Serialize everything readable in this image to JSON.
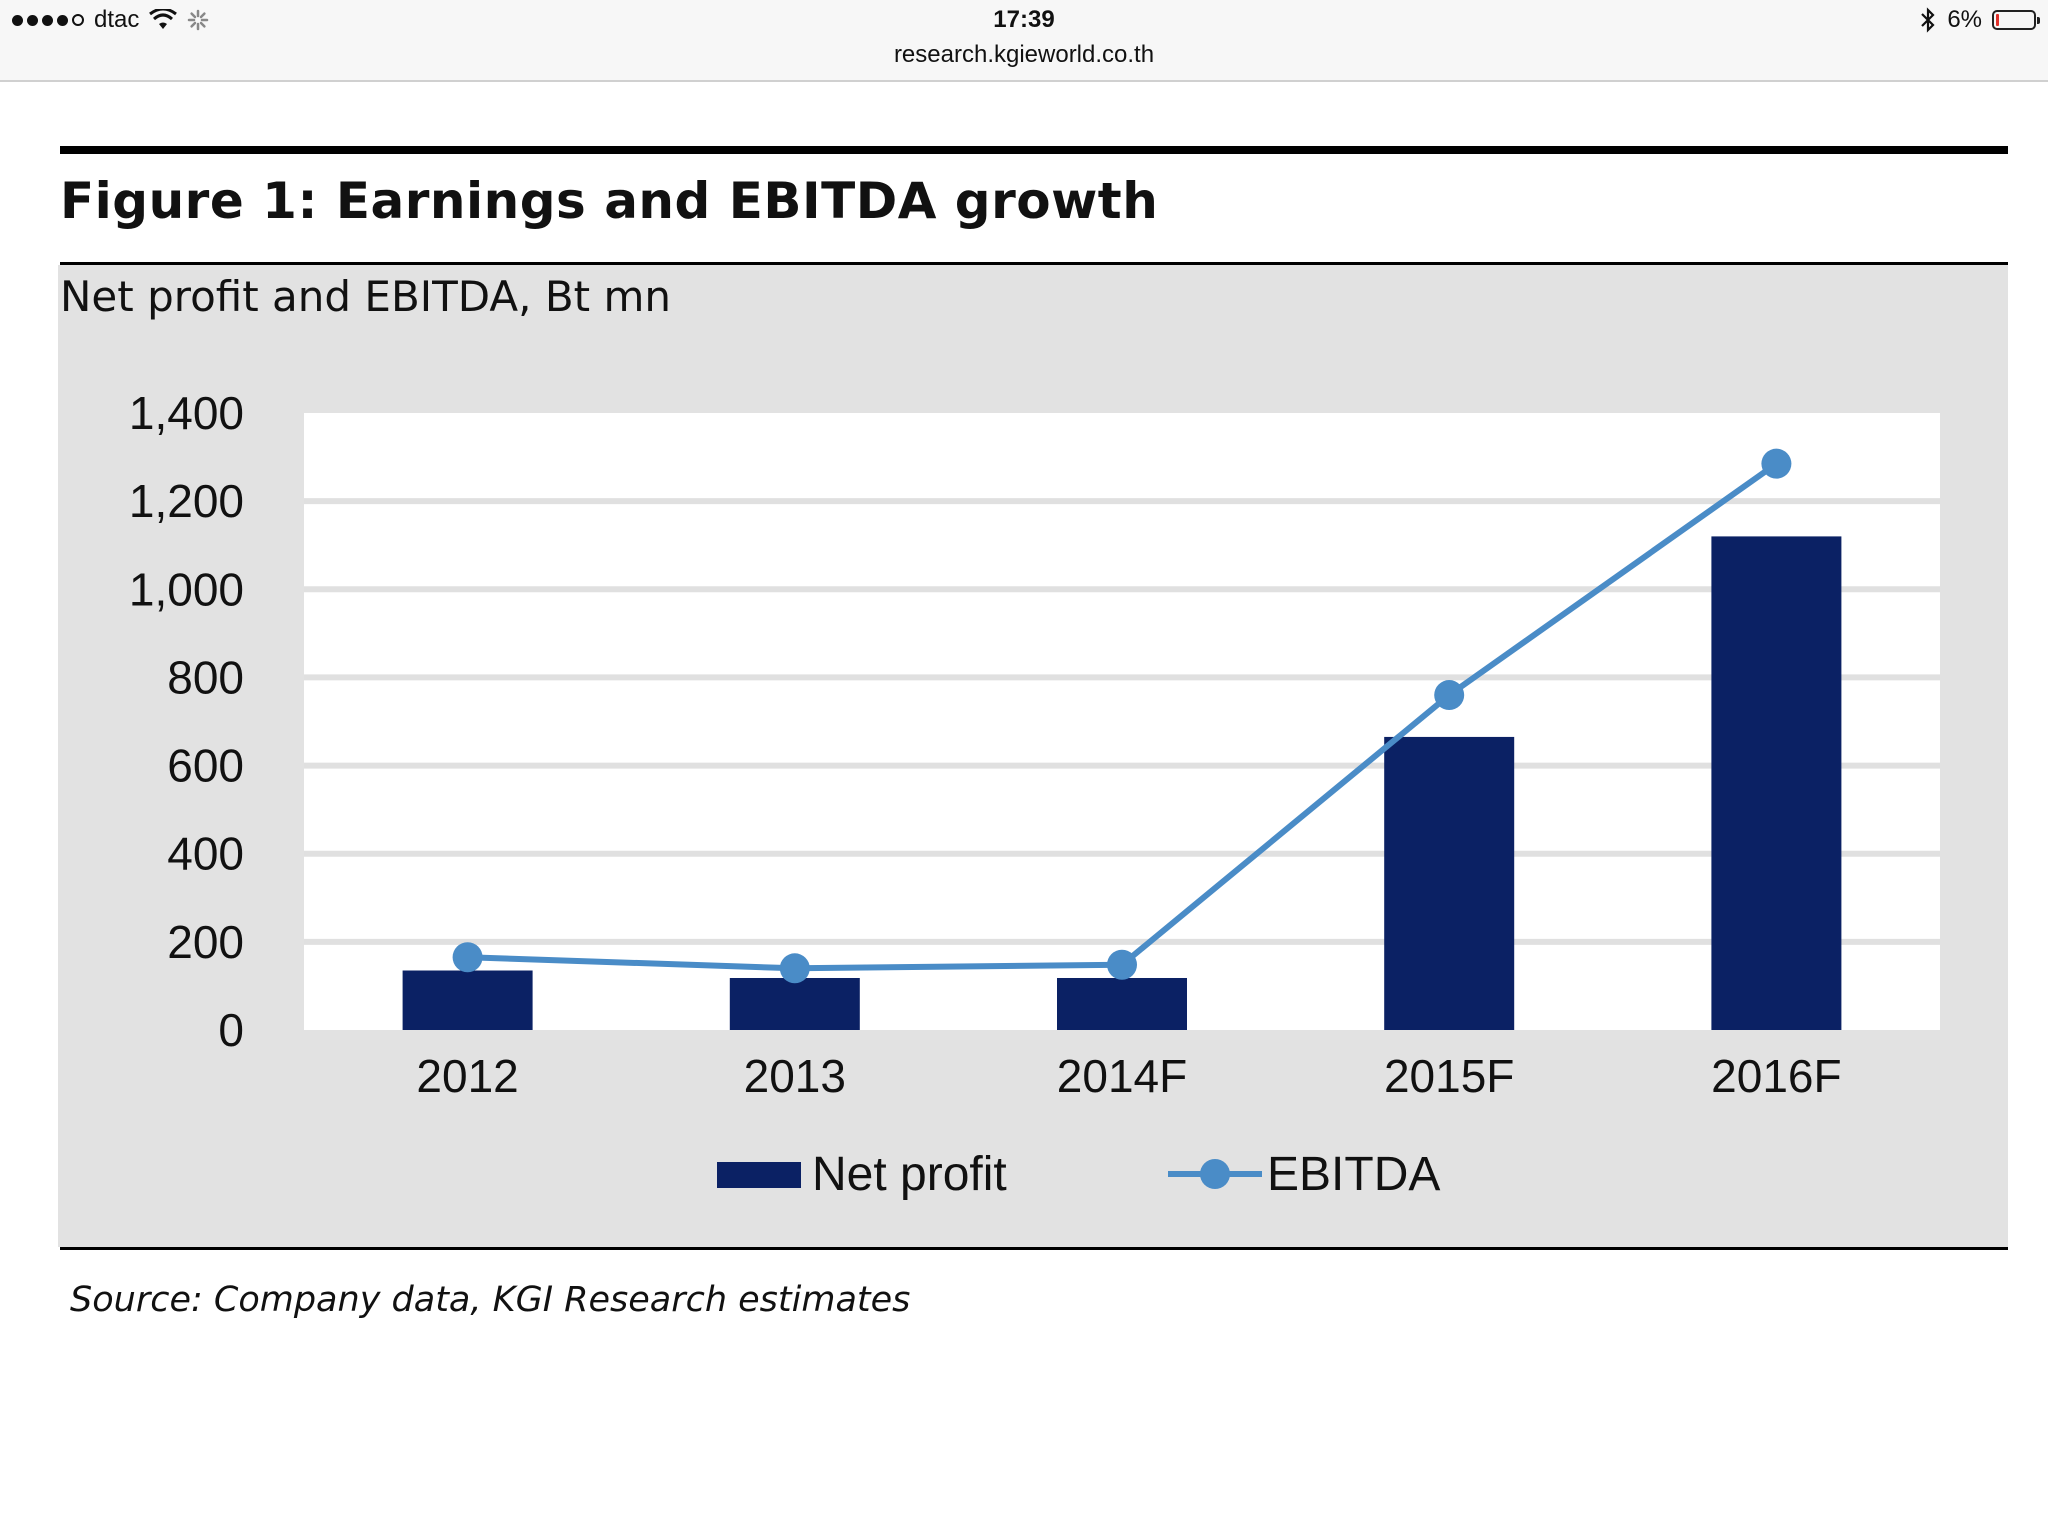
{
  "status_bar": {
    "carrier": "dtac",
    "time": "17:39",
    "url": "research.kgieworld.co.th",
    "battery": "6%",
    "battery_level": 0.06
  },
  "figure": {
    "title": "Figure 1: Earnings and EBITDA growth",
    "subtitle": "Net profit and EBITDA, Bt mn",
    "source": "Source: Company data, KGI Research estimates"
  },
  "colors": {
    "bar": "#0b2164",
    "line": "#4a8cc7",
    "panel": "#e2e2e2",
    "plot": "#ffffff",
    "grid": "#e0e0e0"
  },
  "chart_data": {
    "type": "bar",
    "categories": [
      "2012",
      "2013",
      "2014F",
      "2015F",
      "2016F"
    ],
    "series": [
      {
        "name": "Net profit",
        "type": "bar",
        "values": [
          135,
          118,
          118,
          665,
          1120
        ]
      },
      {
        "name": "EBITDA",
        "type": "line",
        "values": [
          165,
          140,
          148,
          760,
          1285
        ]
      }
    ],
    "yticks": [
      "0",
      "200",
      "400",
      "600",
      "800",
      "1,000",
      "1,200",
      "1,400"
    ],
    "ytick_values": [
      0,
      200,
      400,
      600,
      800,
      1000,
      1200,
      1400
    ],
    "ylim": [
      0,
      1400
    ],
    "legend_position": "bottom",
    "grid": true
  }
}
